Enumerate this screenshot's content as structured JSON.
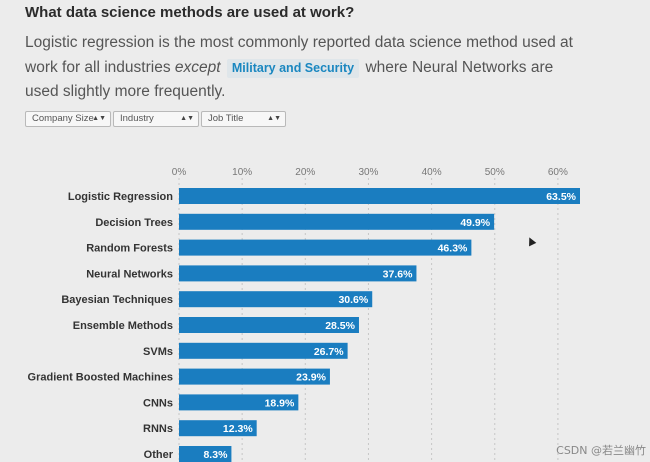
{
  "page": {
    "title": "What data science methods are used at work?",
    "description": {
      "part1": "Logistic regression is the most commonly reported data science method used at work for all industries ",
      "emphasis": "except",
      "highlight": "Military and Security",
      "part2": " where Neural Networks are used slightly more frequently."
    },
    "filters": [
      {
        "label": "Company Size"
      },
      {
        "label": "Industry"
      },
      {
        "label": "Job Title"
      }
    ],
    "watermark": "CSDN @若兰幽竹"
  },
  "colors": {
    "bar": "#1a7dc0",
    "background": "#ececec",
    "grid": "#c6c6c6",
    "highlight_text": "#1a87c0"
  },
  "chart_data": {
    "type": "bar",
    "orientation": "horizontal",
    "categories": [
      "Logistic Regression",
      "Decision Trees",
      "Random Forests",
      "Neural Networks",
      "Bayesian Techniques",
      "Ensemble Methods",
      "SVMs",
      "Gradient Boosted Machines",
      "CNNs",
      "RNNs",
      "Other"
    ],
    "values": [
      63.5,
      49.9,
      46.3,
      37.6,
      30.6,
      28.5,
      26.7,
      23.9,
      18.9,
      12.3,
      8.3
    ],
    "value_labels": [
      "63.5%",
      "49.9%",
      "46.3%",
      "37.6%",
      "30.6%",
      "28.5%",
      "26.7%",
      "23.9%",
      "18.9%",
      "12.3%",
      "8.3%"
    ],
    "ticks": [
      0,
      10,
      20,
      30,
      40,
      50,
      60
    ],
    "tick_labels": [
      "0%",
      "10%",
      "20%",
      "30%",
      "40%",
      "50%",
      "60%"
    ],
    "xlim": [
      0,
      63.5
    ],
    "grid": true,
    "title": "",
    "xlabel": "",
    "ylabel": ""
  }
}
